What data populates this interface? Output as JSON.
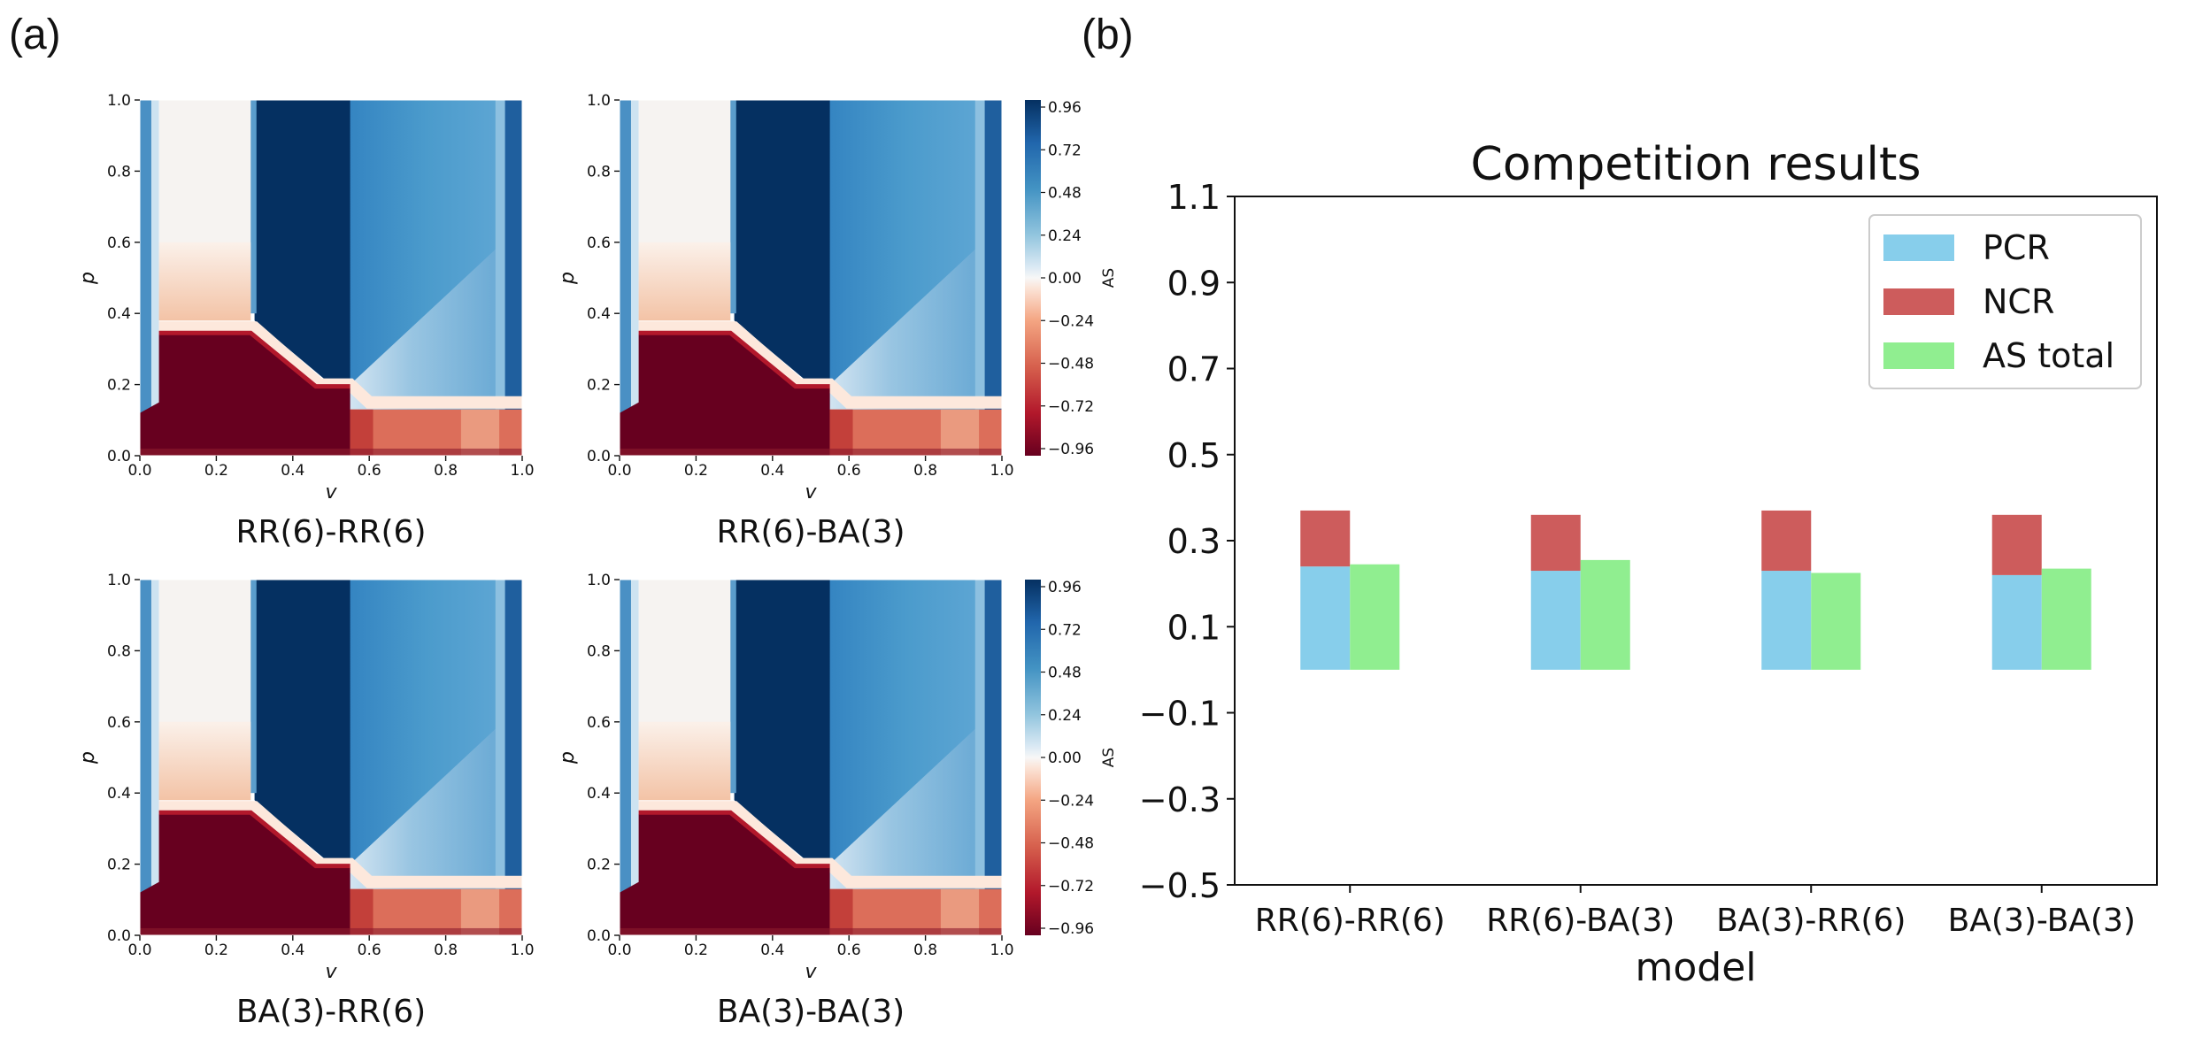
{
  "panel_labels": [
    "(a)",
    "(b)"
  ],
  "chart_data": [
    {
      "type": "heatmap",
      "panel": "(a)",
      "xlabel": "v",
      "ylabel": "p",
      "xlim": [
        0.0,
        1.0
      ],
      "ylim": [
        0.0,
        1.0
      ],
      "x_ticks": [
        "0.0",
        "0.2",
        "0.4",
        "0.6",
        "0.8",
        "1.0"
      ],
      "y_ticks": [
        "0.0",
        "0.2",
        "0.4",
        "0.6",
        "0.8",
        "1.0"
      ],
      "colorbar_label": "AS",
      "colorbar_ticks": [
        "0.96",
        "0.72",
        "0.48",
        "0.24",
        "0.00",
        "−0.24",
        "−0.48",
        "−0.72",
        "−0.96"
      ],
      "colorbar_range": [
        -0.96,
        0.96
      ],
      "cmap": "RdBu",
      "subplots": [
        {
          "title": "RR(6)-RR(6)"
        },
        {
          "title": "RR(6)-BA(3)"
        },
        {
          "title": "BA(3)-RR(6)"
        },
        {
          "title": "BA(3)-BA(3)"
        }
      ]
    },
    {
      "type": "bar",
      "panel": "(b)",
      "title": "Competition results",
      "xlabel": "model",
      "ylabel": "",
      "ylim": [
        -0.5,
        1.1
      ],
      "y_ticks": [
        "1.1",
        "0.9",
        "0.7",
        "0.5",
        "0.3",
        "0.1",
        "−0.1",
        "−0.3",
        "−0.5"
      ],
      "categories": [
        "RR(6)-RR(6)",
        "RR(6)-BA(3)",
        "BA(3)-RR(6)",
        "BA(3)-BA(3)"
      ],
      "legend_position": "top-right",
      "series": [
        {
          "name": "PCR",
          "color": "#87ceeb",
          "values": [
            0.24,
            0.23,
            0.23,
            0.22
          ]
        },
        {
          "name": "NCR",
          "color": "#cd5c5c",
          "values": [
            0.13,
            0.13,
            0.14,
            0.14
          ]
        },
        {
          "name": "AS total",
          "color": "#90ee90",
          "values": [
            0.245,
            0.255,
            0.225,
            0.235
          ]
        }
      ],
      "stacked": [
        "PCR",
        "NCR"
      ]
    }
  ]
}
